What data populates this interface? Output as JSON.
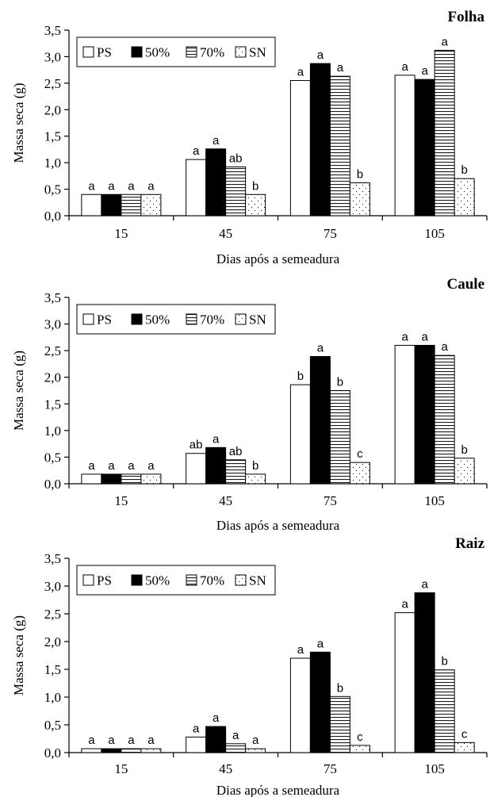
{
  "chart_data": [
    {
      "type": "bar",
      "title": "Folha",
      "xlabel": "Dias após a semeadura",
      "ylabel": "Massa seca (g)",
      "ylim": [
        0,
        3.5
      ],
      "yticks": [
        "0,0",
        "0,5",
        "1,0",
        "1,5",
        "2,0",
        "2,5",
        "3,0",
        "3,5"
      ],
      "categories": [
        "15",
        "45",
        "75",
        "105"
      ],
      "legend_position": "top-left",
      "series": [
        {
          "name": "PS",
          "pattern": "white",
          "values": [
            0.4,
            1.06,
            2.55,
            2.65
          ],
          "letters": [
            "a",
            "a",
            "a",
            "a"
          ]
        },
        {
          "name": "50%",
          "pattern": "black",
          "values": [
            0.4,
            1.26,
            2.87,
            2.57
          ],
          "letters": [
            "a",
            "a",
            "a",
            "a"
          ]
        },
        {
          "name": "70%",
          "pattern": "hlines",
          "values": [
            0.4,
            0.92,
            2.63,
            3.12
          ],
          "letters": [
            "a",
            "ab",
            "a",
            "a"
          ]
        },
        {
          "name": "SN",
          "pattern": "dots",
          "values": [
            0.4,
            0.4,
            0.62,
            0.7
          ],
          "letters": [
            "a",
            "b",
            "b",
            "b"
          ]
        }
      ]
    },
    {
      "type": "bar",
      "title": "Caule",
      "xlabel": "Dias após a semeadura",
      "ylabel": "Massa seca (g)",
      "ylim": [
        0,
        3.5
      ],
      "yticks": [
        "0,0",
        "0,5",
        "1,0",
        "1,5",
        "2,0",
        "2,5",
        "3,0",
        "3,5"
      ],
      "categories": [
        "15",
        "45",
        "75",
        "105"
      ],
      "legend_position": "top-left",
      "series": [
        {
          "name": "PS",
          "pattern": "white",
          "values": [
            0.18,
            0.57,
            1.86,
            2.6
          ],
          "letters": [
            "a",
            "ab",
            "b",
            "a"
          ]
        },
        {
          "name": "50%",
          "pattern": "black",
          "values": [
            0.18,
            0.68,
            2.39,
            2.6
          ],
          "letters": [
            "a",
            "a",
            "a",
            "a"
          ]
        },
        {
          "name": "70%",
          "pattern": "hlines",
          "values": [
            0.18,
            0.45,
            1.75,
            2.41
          ],
          "letters": [
            "a",
            "ab",
            "b",
            "a"
          ]
        },
        {
          "name": "SN",
          "pattern": "dots",
          "values": [
            0.18,
            0.18,
            0.4,
            0.48
          ],
          "letters": [
            "a",
            "b",
            "c",
            "b"
          ]
        }
      ]
    },
    {
      "type": "bar",
      "title": "Raiz",
      "xlabel": "Dias após a semeadura",
      "ylabel": "Massa seca (g)",
      "ylim": [
        0,
        3.5
      ],
      "yticks": [
        "0,0",
        "0,5",
        "1,0",
        "1,5",
        "2,0",
        "2,5",
        "3,0",
        "3,5"
      ],
      "categories": [
        "15",
        "45",
        "75",
        "105"
      ],
      "legend_position": "top-left",
      "series": [
        {
          "name": "PS",
          "pattern": "white",
          "values": [
            0.07,
            0.28,
            1.7,
            2.52
          ],
          "letters": [
            "a",
            "a",
            "a",
            "a"
          ]
        },
        {
          "name": "50%",
          "pattern": "black",
          "values": [
            0.07,
            0.47,
            1.81,
            2.88
          ],
          "letters": [
            "a",
            "a",
            "a",
            "a"
          ]
        },
        {
          "name": "70%",
          "pattern": "hlines",
          "values": [
            0.07,
            0.16,
            1.01,
            1.49
          ],
          "letters": [
            "a",
            "a",
            "b",
            "b"
          ]
        },
        {
          "name": "SN",
          "pattern": "dots",
          "values": [
            0.07,
            0.07,
            0.13,
            0.18
          ],
          "letters": [
            "a",
            "a",
            "c",
            "c"
          ]
        }
      ]
    }
  ]
}
